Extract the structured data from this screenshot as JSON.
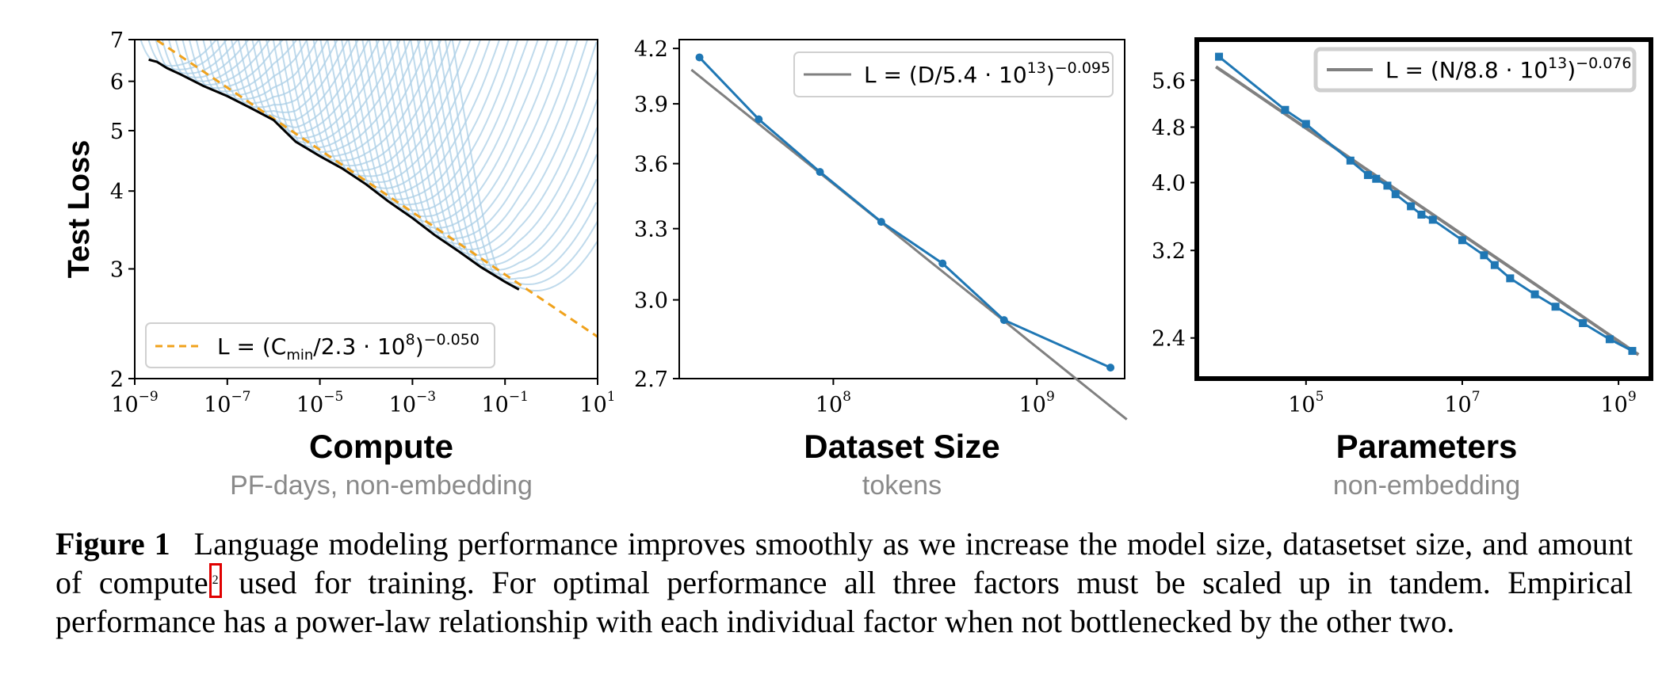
{
  "chart_data": [
    {
      "type": "line",
      "ylabel": "Test Loss",
      "xlabel": "Compute",
      "xsublabel": "PF-days, non-embedding",
      "xscale": "log",
      "yscale": "log",
      "xlim": [
        1e-09,
        10
      ],
      "ylim": [
        2,
        7
      ],
      "xticks": [
        {
          "base": "10",
          "exp": "−9"
        },
        {
          "base": "10",
          "exp": "−7"
        },
        {
          "base": "10",
          "exp": "−5"
        },
        {
          "base": "10",
          "exp": "−3"
        },
        {
          "base": "10",
          "exp": "−1"
        },
        {
          "base": "10",
          "exp": "1"
        }
      ],
      "yticks": [
        "2",
        "3",
        "4",
        "5",
        "6",
        "7"
      ],
      "legend": {
        "placement": "bottom-left",
        "text": "L = (C",
        "sub": "min",
        "text2": "/2.3 · 10",
        "exp1": "8",
        "text3": ")",
        "exp2": "−0.050"
      },
      "fit": {
        "C0": 230000000.0,
        "alpha": 0.05
      },
      "frontier": [
        [
          2e-09,
          6.5
        ],
        [
          3e-09,
          6.45
        ],
        [
          5e-09,
          6.3
        ],
        [
          1e-08,
          6.15
        ],
        [
          3e-08,
          5.9
        ],
        [
          1e-07,
          5.68
        ],
        [
          3e-07,
          5.45
        ],
        [
          1e-06,
          5.2
        ],
        [
          3e-06,
          4.8
        ],
        [
          1e-05,
          4.55
        ],
        [
          3e-05,
          4.35
        ],
        [
          0.0001,
          4.1
        ],
        [
          0.0003,
          3.85
        ],
        [
          0.001,
          3.62
        ],
        [
          0.003,
          3.4
        ],
        [
          0.01,
          3.2
        ],
        [
          0.03,
          3.02
        ],
        [
          0.1,
          2.86
        ],
        [
          0.2,
          2.78
        ]
      ],
      "colors": {
        "curves": "#a9cde6",
        "frontier": "#000000",
        "fit": "#f0a21c"
      }
    },
    {
      "type": "line",
      "xlabel": "Dataset Size",
      "xsublabel": "tokens",
      "xscale": "log",
      "yscale": "log",
      "xlim": [
        17500000.0,
        2700000000.0
      ],
      "ylim": [
        2.7,
        4.25
      ],
      "xticks": [
        {
          "base": "10",
          "exp": "8"
        },
        {
          "base": "10",
          "exp": "9"
        }
      ],
      "yticks": [
        "2.7",
        "3.0",
        "3.3",
        "3.6",
        "3.9",
        "4.2"
      ],
      "legend": {
        "placement": "top-right",
        "text": "L = (D/5.4 · 10",
        "exp1": "13",
        "text3": ")",
        "exp2": "−0.095"
      },
      "fit": {
        "C0": 54000000000000.0,
        "alpha": 0.095
      },
      "x": [
        22000000.0,
        43000000.0,
        86000000.0,
        172000000.0,
        344000000.0,
        690000000.0,
        2300000000.0
      ],
      "y": [
        4.15,
        3.82,
        3.56,
        3.33,
        3.15,
        2.92,
        2.74
      ],
      "colors": {
        "data": "#1f77b4",
        "fit": "#808080"
      }
    },
    {
      "type": "line",
      "xlabel": "Parameters",
      "xsublabel": "non-embedding",
      "xscale": "log",
      "yscale": "log",
      "xlim": [
        4000.0,
        2600000000.0
      ],
      "ylim": [
        2.1,
        6.4
      ],
      "xticks": [
        {
          "base": "10",
          "exp": "5"
        },
        {
          "base": "10",
          "exp": "7"
        },
        {
          "base": "10",
          "exp": "9"
        }
      ],
      "yticks": [
        "2.4",
        "3.2",
        "4.0",
        "4.8",
        "5.6"
      ],
      "legend": {
        "placement": "top-right",
        "text": "L = (N/8.8 · 10",
        "exp1": "13",
        "text3": ")",
        "exp2": "−0.076"
      },
      "fit": {
        "C0": 88000000000000.0,
        "alpha": 0.076
      },
      "x": [
        7700.0,
        54000.0,
        100000.0,
        370000.0,
        620000.0,
        790000.0,
        1100000.0,
        1400000.0,
        2200000.0,
        3000000.0,
        4200000.0,
        10000000.0,
        19000000.0,
        26000000.0,
        41000000.0,
        85000000.0,
        156000000.0,
        350000000.0,
        770000000.0,
        1500000000.0
      ],
      "y": [
        6.05,
        5.08,
        4.85,
        4.3,
        4.1,
        4.05,
        3.96,
        3.85,
        3.7,
        3.6,
        3.54,
        3.31,
        3.15,
        3.05,
        2.92,
        2.77,
        2.66,
        2.52,
        2.39,
        2.3
      ],
      "colors": {
        "data": "#1f77b4",
        "fit": "#808080"
      }
    }
  ],
  "caption": {
    "label": "Figure 1",
    "text_before_note": "Language modeling performance improves smoothly as we increase the model size, datasetset size, and amount of compute",
    "note_marker": "2",
    "text_after_note": " used for training.  For optimal performance all three factors must be scaled up in tandem.  Empirical performance has a power-law relationship with each individual factor when not bottlenecked by the other two."
  }
}
